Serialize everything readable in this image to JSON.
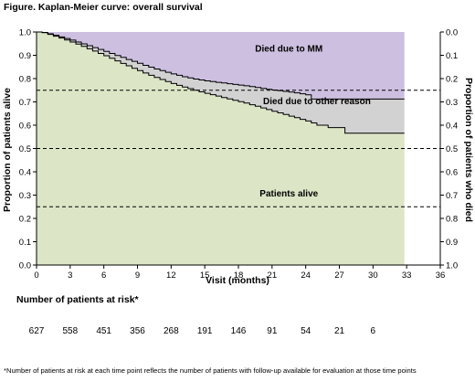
{
  "figure_title": "Figure. Kaplan-Meier curve: overall survival",
  "risk_table": {
    "title": "Number of patients at risk*",
    "counts": [
      "627",
      "558",
      "451",
      "356",
      "268",
      "191",
      "146",
      "91",
      "54",
      "21",
      "6"
    ]
  },
  "footnote": "*Number of patients at risk at each time point reflects the number of patients with follow-up available for evaluation at those time points",
  "colors": {
    "alive_fill": "#dce6c6",
    "other_fill": "#d2d2d2",
    "mm_fill": "#cdbfe0",
    "curve": "#000000",
    "grid_dashed": "#000000"
  },
  "chart_data": {
    "type": "area",
    "xlabel": "Visit (months)",
    "ylabel_left": "Proportion of patients alive",
    "ylabel_right": "Proportion of patients who died",
    "x_ticks": [
      0,
      3,
      6,
      9,
      12,
      15,
      18,
      21,
      24,
      27,
      30,
      33,
      36
    ],
    "y_ticks_left": [
      "0.0",
      "0.1",
      "0.2",
      "0.3",
      "0.4",
      "0.5",
      "0.6",
      "0.7",
      "0.8",
      "0.9",
      "1.0"
    ],
    "y_ticks_right": [
      "1.0",
      "0.9",
      "0.8",
      "0.7",
      "0.6",
      "0.5",
      "0.4",
      "0.3",
      "0.2",
      "0.1",
      "0.0"
    ],
    "xlim": [
      0,
      36
    ],
    "ylim": [
      0,
      1
    ],
    "dashed_lines": [
      0.75,
      0.5,
      0.25
    ],
    "region_labels": {
      "mm": "Died due to MM",
      "other": "Died due to other reason",
      "alive": "Patients alive"
    },
    "region_label_positions": {
      "mm": [
        22.5,
        0.915
      ],
      "other": [
        25,
        0.69
      ],
      "alive": [
        22.5,
        0.295
      ]
    },
    "region_label_anchor": {
      "mm": "middle",
      "other": "middle",
      "alive": "middle"
    },
    "series": [
      {
        "name": "upper",
        "x": [
          0,
          0.5,
          1,
          1.5,
          2,
          2.5,
          3,
          3.5,
          4,
          4.5,
          5,
          5.5,
          6,
          6.5,
          7,
          7.5,
          8,
          8.5,
          9,
          9.5,
          10,
          10.5,
          11,
          11.5,
          12,
          12.5,
          13,
          13.5,
          14,
          14.5,
          15,
          15.5,
          16,
          16.5,
          17,
          17.5,
          18,
          18.5,
          19,
          19.5,
          20,
          20.5,
          21,
          21.5,
          22,
          22.5,
          23,
          23.5,
          24,
          24.5,
          27.5,
          32.8
        ],
        "y": [
          1.0,
          0.998,
          0.992,
          0.986,
          0.979,
          0.972,
          0.965,
          0.957,
          0.949,
          0.941,
          0.933,
          0.925,
          0.917,
          0.908,
          0.899,
          0.891,
          0.882,
          0.874,
          0.866,
          0.857,
          0.849,
          0.841,
          0.834,
          0.827,
          0.82,
          0.814,
          0.808,
          0.803,
          0.798,
          0.794,
          0.79,
          0.787,
          0.784,
          0.781,
          0.778,
          0.775,
          0.772,
          0.769,
          0.766,
          0.762,
          0.758,
          0.754,
          0.751,
          0.748,
          0.745,
          0.742,
          0.739,
          0.735,
          0.73,
          0.712,
          0.712,
          0.712
        ]
      },
      {
        "name": "lower",
        "x": [
          0,
          0.5,
          1,
          1.5,
          2,
          2.5,
          3,
          3.5,
          4,
          4.5,
          5,
          5.5,
          6,
          6.5,
          7,
          7.5,
          8,
          8.5,
          9,
          9.5,
          10,
          10.5,
          11,
          11.5,
          12,
          12.5,
          13,
          13.5,
          14,
          14.5,
          15,
          15.5,
          16,
          16.5,
          17,
          17.5,
          18,
          18.5,
          19,
          19.5,
          20,
          20.5,
          21,
          21.5,
          22,
          22.5,
          23,
          23.5,
          24,
          24.5,
          25,
          26,
          27.5,
          32.8
        ],
        "y": [
          1.0,
          0.997,
          0.99,
          0.982,
          0.974,
          0.966,
          0.957,
          0.948,
          0.938,
          0.928,
          0.918,
          0.908,
          0.898,
          0.887,
          0.876,
          0.865,
          0.855,
          0.844,
          0.834,
          0.824,
          0.814,
          0.805,
          0.796,
          0.787,
          0.779,
          0.771,
          0.764,
          0.757,
          0.75,
          0.743,
          0.737,
          0.731,
          0.725,
          0.719,
          0.713,
          0.707,
          0.701,
          0.695,
          0.688,
          0.681,
          0.674,
          0.667,
          0.66,
          0.653,
          0.646,
          0.639,
          0.632,
          0.625,
          0.618,
          0.61,
          0.6,
          0.59,
          0.566,
          0.566
        ]
      }
    ],
    "plot_end_x": 32.8
  }
}
